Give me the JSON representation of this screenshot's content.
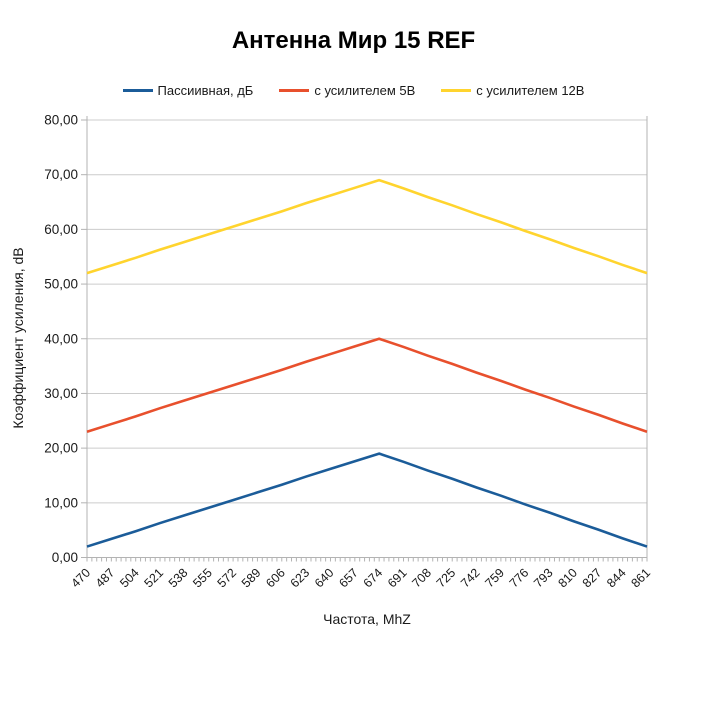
{
  "chart": {
    "title": "Антенна Мир 15 REF",
    "x_axis_title": "Частота, MhZ",
    "y_axis_title": "Коэффициент усиления, dB"
  },
  "chart_data": {
    "type": "line",
    "title": "Антенна Мир 15 REF",
    "xlabel": "Частота, MhZ",
    "ylabel": "Коэффициент усиления, dB",
    "ylim": [
      0,
      80
    ],
    "grid": "horizontal",
    "legend_position": "top",
    "y_ticks": [
      0,
      10,
      20,
      30,
      40,
      50,
      60,
      70,
      80
    ],
    "y_tick_labels": [
      "0,00",
      "10,00",
      "20,00",
      "30,00",
      "40,00",
      "50,00",
      "60,00",
      "70,00",
      "80,00"
    ],
    "categories": [
      470,
      487,
      504,
      521,
      538,
      555,
      572,
      589,
      606,
      623,
      640,
      657,
      674,
      691,
      708,
      725,
      742,
      759,
      776,
      793,
      810,
      827,
      844,
      861
    ],
    "series": [
      {
        "name": "Пассиивная, дБ",
        "color": "#1b5c99",
        "keypoints": [
          {
            "x": 470,
            "y": 2
          },
          {
            "x": 674,
            "y": 19
          },
          {
            "x": 861,
            "y": 2
          }
        ],
        "values": [
          2.0,
          3.4,
          4.8,
          6.3,
          7.7,
          9.1,
          10.5,
          11.9,
          13.3,
          14.8,
          16.2,
          17.6,
          19.0,
          17.5,
          15.9,
          14.4,
          12.8,
          11.3,
          9.7,
          8.2,
          6.6,
          5.1,
          3.5,
          2.0
        ]
      },
      {
        "name": "с усилителем 5В",
        "color": "#e8502d",
        "keypoints": [
          {
            "x": 470,
            "y": 23
          },
          {
            "x": 674,
            "y": 40
          },
          {
            "x": 861,
            "y": 23
          }
        ],
        "values": [
          23.0,
          24.4,
          25.8,
          27.3,
          28.7,
          30.1,
          31.5,
          32.9,
          34.3,
          35.8,
          37.2,
          38.6,
          40.0,
          38.5,
          36.9,
          35.4,
          33.8,
          32.3,
          30.7,
          29.2,
          27.6,
          26.1,
          24.5,
          23.0
        ]
      },
      {
        "name": "с усилителем 12В",
        "color": "#ffd42e",
        "keypoints": [
          {
            "x": 470,
            "y": 52
          },
          {
            "x": 674,
            "y": 69
          },
          {
            "x": 861,
            "y": 52
          }
        ],
        "values": [
          52.0,
          53.4,
          54.8,
          56.3,
          57.7,
          59.1,
          60.5,
          61.9,
          63.3,
          64.8,
          66.2,
          67.6,
          69.0,
          67.5,
          65.9,
          64.4,
          62.8,
          61.3,
          59.7,
          58.2,
          56.6,
          55.1,
          53.5,
          52.0
        ]
      }
    ],
    "colors": {
      "gridline": "#cccccc",
      "axis": "#b3b3b3",
      "text": "#1a1a1a",
      "background": "#ffffff"
    }
  }
}
